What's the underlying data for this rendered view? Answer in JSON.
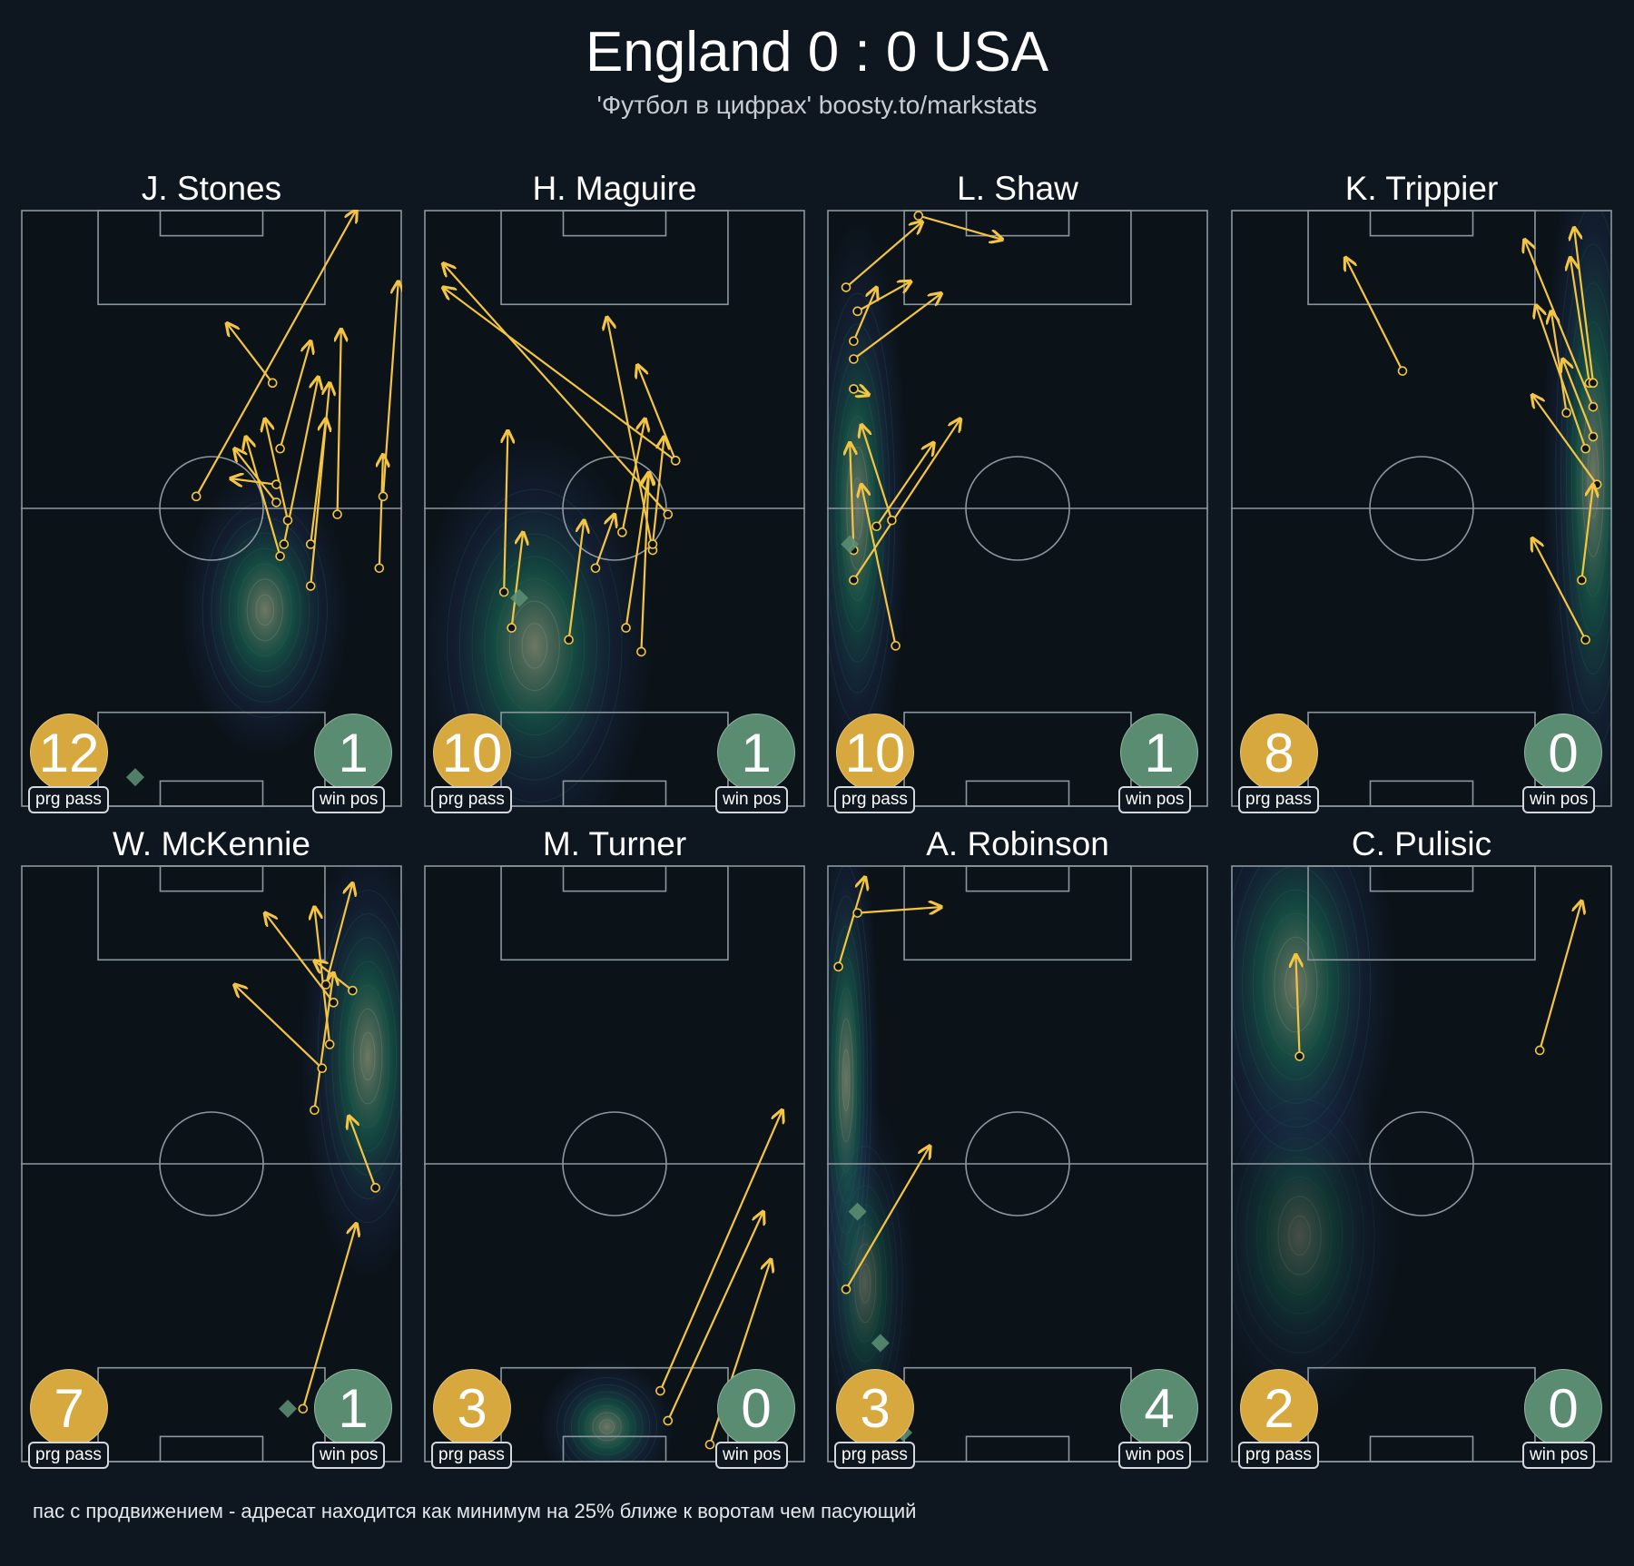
{
  "header": {
    "title": "England 0 : 0 USA",
    "subtitle": "'Футбол в цифрах' boosty.to/markstats"
  },
  "footnote": "пас с продвижением - адресат находится как минимум на 25% ближе к воротам чем пасующий",
  "colors": {
    "background": "#0e1720",
    "pass_arrow": "#f4c542",
    "prg_badge": "#d6a83e",
    "winpos_badge": "#5a8c72",
    "pitch_line": "#8b979f",
    "density_low": "#2b3d7a",
    "density_mid": "#1f8a70",
    "density_high": "#bfc9a0"
  },
  "chart_data": {
    "type": "pass-map",
    "pitch": {
      "length": 105,
      "width": 68,
      "orientation": "vertical, attacking upward"
    },
    "panels": [
      {
        "player": "J. Stones",
        "prg_pass": 12,
        "win_pos": 1,
        "prg_label": "prg pass",
        "win_label": "win pos",
        "win_pos_points": [
          [
            30,
            5
          ]
        ],
        "heatmap": [
          {
            "x": 64,
            "y": 33,
            "sx": 10,
            "sy": 11,
            "w": 1.0
          }
        ],
        "passes": [
          [
            46,
            52,
            88,
            100
          ],
          [
            66,
            71,
            54,
            81
          ],
          [
            68,
            60,
            76,
            78
          ],
          [
            69,
            44,
            78,
            72
          ],
          [
            70,
            48,
            64,
            65
          ],
          [
            67,
            51,
            56,
            60
          ],
          [
            67,
            54,
            55,
            55
          ],
          [
            68,
            42,
            59,
            62
          ],
          [
            76,
            37,
            81,
            71
          ],
          [
            76,
            44,
            80,
            65
          ],
          [
            83,
            49,
            84,
            80
          ],
          [
            94,
            40,
            95,
            59
          ],
          [
            95,
            52,
            99,
            88
          ]
        ]
      },
      {
        "player": "H. Maguire",
        "prg_pass": 10,
        "win_pos": 1,
        "prg_label": "prg pass",
        "win_label": "win pos",
        "win_pos_points": [
          [
            25,
            35
          ]
        ],
        "heatmap": [
          {
            "x": 29,
            "y": 27,
            "sx": 14,
            "sy": 16,
            "w": 1.0
          }
        ],
        "passes": [
          [
            21,
            36,
            22,
            63
          ],
          [
            23,
            30,
            26,
            46
          ],
          [
            38,
            28,
            42,
            48
          ],
          [
            45,
            40,
            50,
            49
          ],
          [
            52,
            46,
            58,
            65
          ],
          [
            53,
            30,
            59,
            56
          ],
          [
            57,
            26,
            59,
            56
          ],
          [
            60,
            43,
            48,
            82
          ],
          [
            64,
            49,
            5,
            91
          ],
          [
            66,
            58,
            5,
            87
          ],
          [
            66,
            58,
            56,
            74
          ],
          [
            60,
            44,
            63,
            62
          ]
        ]
      },
      {
        "player": "L. Shaw",
        "prg_pass": 10,
        "win_pos": 1,
        "prg_label": "prg pass",
        "win_label": "win pos",
        "win_pos_points": [
          [
            6,
            44
          ]
        ],
        "heatmap": [
          {
            "x": 8,
            "y": 50,
            "sx": 6,
            "sy": 22,
            "w": 1.0
          }
        ],
        "passes": [
          [
            7,
            43,
            6,
            61
          ],
          [
            7,
            38,
            35,
            65
          ],
          [
            13,
            47,
            28,
            61
          ],
          [
            18,
            27,
            9,
            54
          ],
          [
            17,
            48,
            9,
            64
          ],
          [
            7,
            70,
            11,
            69
          ],
          [
            7,
            75,
            30,
            86
          ],
          [
            7,
            78,
            13,
            87
          ],
          [
            24,
            99,
            46,
            95
          ],
          [
            8,
            83,
            22,
            88
          ],
          [
            5,
            87,
            25,
            98
          ]
        ]
      },
      {
        "player": "K. Trippier",
        "prg_pass": 8,
        "win_pos": 0,
        "prg_label": "prg pass",
        "win_label": "win pos",
        "win_pos_points": [],
        "heatmap": [
          {
            "x": 95,
            "y": 55,
            "sx": 6,
            "sy": 28,
            "w": 1.0
          }
        ],
        "passes": [
          [
            45,
            73,
            30,
            92
          ],
          [
            95,
            67,
            77,
            95
          ],
          [
            95,
            62,
            87,
            75
          ],
          [
            93,
            60,
            80,
            84
          ],
          [
            94,
            71,
            89,
            92
          ],
          [
            95,
            71,
            90,
            97
          ],
          [
            88,
            66,
            84,
            83
          ],
          [
            96,
            54,
            79,
            69
          ],
          [
            92,
            38,
            95,
            54
          ],
          [
            93,
            28,
            79,
            45
          ]
        ]
      },
      {
        "player": "W. McKennie",
        "prg_pass": 7,
        "win_pos": 1,
        "prg_label": "prg pass",
        "win_label": "win pos",
        "win_pos_points": [
          [
            70,
            9
          ]
        ],
        "heatmap": [
          {
            "x": 91,
            "y": 68,
            "sx": 8,
            "sy": 17,
            "w": 1.0
          }
        ],
        "passes": [
          [
            77,
            59,
            82,
            82
          ],
          [
            79,
            66,
            56,
            80
          ],
          [
            81,
            70,
            77,
            93
          ],
          [
            80,
            80,
            87,
            97
          ],
          [
            82,
            77,
            64,
            92
          ],
          [
            87,
            79,
            77,
            84
          ],
          [
            93,
            46,
            86,
            58
          ],
          [
            74,
            9,
            88,
            40
          ]
        ]
      },
      {
        "player": "M. Turner",
        "prg_pass": 3,
        "win_pos": 0,
        "prg_label": "prg pass",
        "win_label": "win pos",
        "win_pos_points": [],
        "heatmap": [
          {
            "x": 48,
            "y": 6,
            "sx": 8,
            "sy": 5,
            "w": 1.0
          }
        ],
        "passes": [
          [
            62,
            12,
            94,
            59
          ],
          [
            64,
            7,
            89,
            42
          ],
          [
            75,
            3,
            91,
            34
          ]
        ]
      },
      {
        "player": "A. Robinson",
        "prg_pass": 3,
        "win_pos": 4,
        "prg_label": "prg pass",
        "win_label": "win pos",
        "win_pos_points": [
          [
            8,
            42
          ],
          [
            14,
            20
          ],
          [
            6,
            10
          ],
          [
            20,
            5
          ]
        ],
        "heatmap": [
          {
            "x": 5,
            "y": 64,
            "sx": 4,
            "sy": 22,
            "w": 1.0
          },
          {
            "x": 10,
            "y": 30,
            "sx": 6,
            "sy": 14,
            "w": 0.7
          }
        ],
        "passes": [
          [
            3,
            83,
            10,
            98
          ],
          [
            8,
            92,
            30,
            93
          ],
          [
            5,
            29,
            27,
            53
          ]
        ]
      },
      {
        "player": "C. Pulisic",
        "prg_pass": 2,
        "win_pos": 0,
        "prg_label": "prg pass",
        "win_label": "win pos",
        "win_pos_points": [],
        "heatmap": [
          {
            "x": 17,
            "y": 80,
            "sx": 12,
            "sy": 17,
            "w": 1.0
          },
          {
            "x": 18,
            "y": 38,
            "sx": 12,
            "sy": 14,
            "w": 0.6
          }
        ],
        "passes": [
          [
            18,
            68,
            17,
            85
          ],
          [
            81,
            69,
            92,
            94
          ]
        ]
      }
    ]
  }
}
